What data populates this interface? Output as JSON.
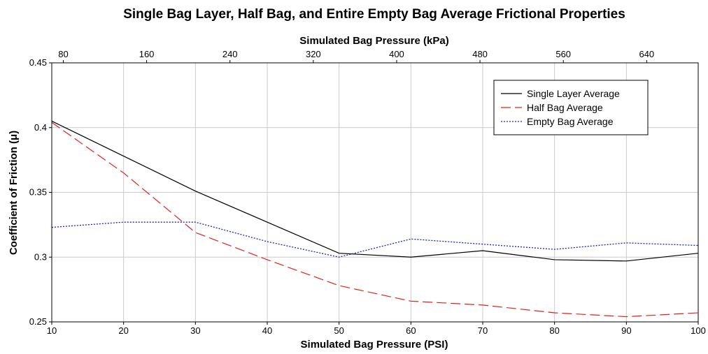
{
  "chart_data": {
    "type": "line",
    "title": "Single Bag Layer, Half Bag, and Entire Empty Bag Average Frictional Properties",
    "xlabel": "Simulated Bag Pressure (PSI)",
    "x2label": "Simulated Bag Pressure (kPa)",
    "ylabel": "Coefficient of Friction (μ)",
    "xlim": [
      10,
      100
    ],
    "ylim": [
      0.25,
      0.45
    ],
    "x_ticks": [
      10,
      20,
      30,
      40,
      50,
      60,
      70,
      80,
      90,
      100
    ],
    "x2_ticks": [
      80,
      160,
      240,
      320,
      400,
      480,
      560,
      640
    ],
    "y_ticks": [
      "0.25",
      "0.3",
      "0.35",
      "0.4",
      "0.45"
    ],
    "grid": true,
    "legend_position": "top-right",
    "x": [
      10,
      20,
      30,
      40,
      50,
      60,
      70,
      80,
      90,
      100
    ],
    "series": [
      {
        "name": "Single Layer Average",
        "color": "#000000",
        "dash": "solid",
        "values": [
          0.405,
          0.378,
          0.351,
          0.327,
          0.303,
          0.3,
          0.305,
          0.298,
          0.297,
          0.303
        ]
      },
      {
        "name": "Half Bag Average",
        "color": "#e02020",
        "dash": "dashed",
        "values": [
          0.404,
          0.365,
          0.319,
          0.298,
          0.278,
          0.266,
          0.263,
          0.257,
          0.254,
          0.257
        ]
      },
      {
        "name": "Empty Bag Average",
        "color": "#2020c0",
        "dash": "dotted",
        "values": [
          0.323,
          0.327,
          0.327,
          0.312,
          0.3,
          0.314,
          0.31,
          0.306,
          0.311,
          0.309
        ]
      }
    ]
  }
}
